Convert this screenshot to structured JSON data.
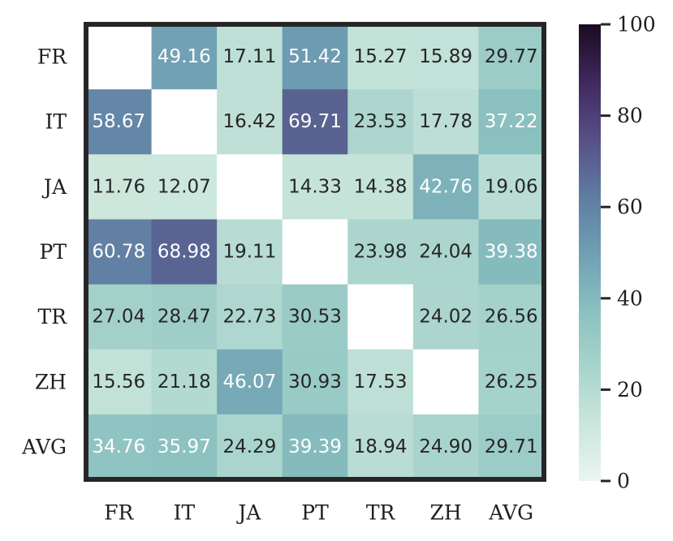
{
  "chart_data": {
    "type": "heatmap",
    "rows": [
      "FR",
      "IT",
      "JA",
      "PT",
      "TR",
      "ZH",
      "AVG"
    ],
    "columns": [
      "FR",
      "IT",
      "JA",
      "PT",
      "TR",
      "ZH",
      "AVG"
    ],
    "values": [
      [
        null,
        49.16,
        17.11,
        51.42,
        15.27,
        15.89,
        29.77
      ],
      [
        58.67,
        null,
        16.42,
        69.71,
        23.53,
        17.78,
        37.22
      ],
      [
        11.76,
        12.07,
        null,
        14.33,
        14.38,
        42.76,
        19.06
      ],
      [
        60.78,
        68.98,
        19.11,
        null,
        23.98,
        24.04,
        39.38
      ],
      [
        27.04,
        28.47,
        22.73,
        30.53,
        null,
        24.02,
        26.56
      ],
      [
        15.56,
        21.18,
        46.07,
        30.93,
        17.53,
        null,
        26.25
      ],
      [
        34.76,
        35.97,
        24.29,
        39.39,
        18.94,
        24.9,
        29.71
      ]
    ],
    "value_labels": [
      [
        "",
        "49.16",
        "17.11",
        "51.42",
        "15.27",
        "15.89",
        "29.77"
      ],
      [
        "58.67",
        "",
        "16.42",
        "69.71",
        "23.53",
        "17.78",
        "37.22"
      ],
      [
        "11.76",
        "12.07",
        "",
        "14.33",
        "14.38",
        "42.76",
        "19.06"
      ],
      [
        "60.78",
        "68.98",
        "19.11",
        "",
        "23.98",
        "24.04",
        "39.38"
      ],
      [
        "27.04",
        "28.47",
        "22.73",
        "30.53",
        "",
        "24.02",
        "26.56"
      ],
      [
        "15.56",
        "21.18",
        "46.07",
        "30.93",
        "17.53",
        "",
        "26.25"
      ],
      [
        "34.76",
        "35.97",
        "24.29",
        "39.39",
        "18.94",
        "24.90",
        "29.71"
      ]
    ],
    "colorbar": {
      "range": [
        0,
        100
      ],
      "ticks": [
        0,
        20,
        40,
        60,
        80,
        100
      ],
      "tick_labels": [
        "0",
        "20",
        "40",
        "60",
        "80",
        "100"
      ],
      "colormap_stops": [
        "#eaf5f0",
        "#cbe6dc",
        "#a8d4cc",
        "#89c0bf",
        "#6f9fb3",
        "#5f7ba1",
        "#564f86",
        "#40285f",
        "#1a0b1f"
      ]
    },
    "title": "",
    "xlabel": "",
    "ylabel": "",
    "grid": false,
    "colors": {
      "border": "#262626",
      "text_dark": "#262626",
      "text_light": "#ffffff",
      "empty_cell": "#ffffff"
    }
  }
}
